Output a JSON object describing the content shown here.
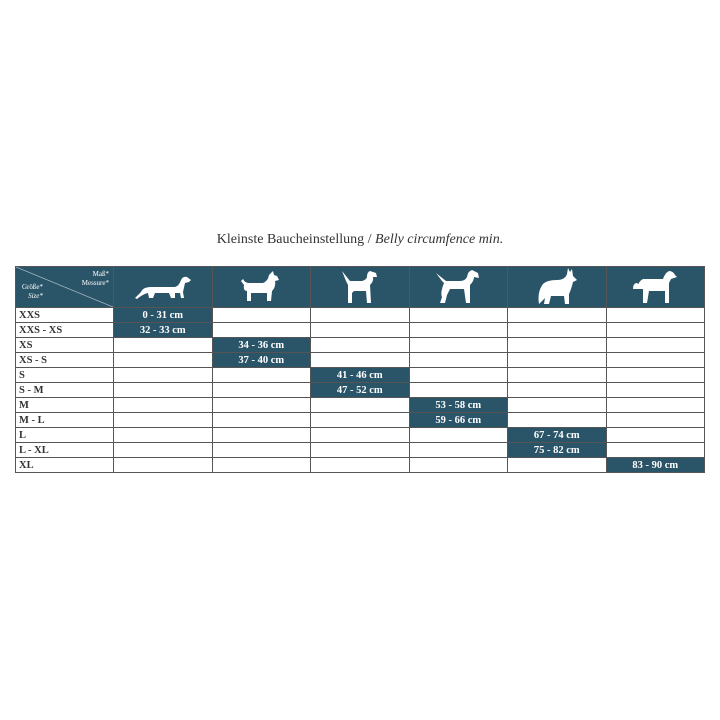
{
  "title": {
    "german": "Kleinste Baucheinstellung /",
    "english": "Belly circumfence min."
  },
  "header": {
    "measure_de": "Maß*",
    "measure_en": "Messure*",
    "size_de": "Größe*",
    "size_en": "Size*",
    "dog_icons": [
      "dachshund-icon",
      "terrier-icon",
      "medium-dog-icon",
      "schnauzer-icon",
      "shepherd-icon",
      "large-dog-icon"
    ]
  },
  "colors": {
    "accent": "#2a5468"
  },
  "rows": [
    {
      "size": "XXS",
      "column": 0,
      "value": "0 - 31 cm"
    },
    {
      "size": "XXS - XS",
      "column": 0,
      "value": "32 - 33 cm"
    },
    {
      "size": "XS",
      "column": 1,
      "value": "34 - 36 cm"
    },
    {
      "size": "XS - S",
      "column": 1,
      "value": "37 - 40 cm"
    },
    {
      "size": "S",
      "column": 2,
      "value": "41 - 46 cm"
    },
    {
      "size": "S - M",
      "column": 2,
      "value": "47 - 52 cm"
    },
    {
      "size": "M",
      "column": 3,
      "value": "53 - 58 cm"
    },
    {
      "size": "M - L",
      "column": 3,
      "value": "59 - 66 cm"
    },
    {
      "size": "L",
      "column": 4,
      "value": "67 - 74 cm"
    },
    {
      "size": "L - XL",
      "column": 4,
      "value": "75 - 82 cm"
    },
    {
      "size": "XL",
      "column": 5,
      "value": "83 - 90 cm"
    }
  ]
}
